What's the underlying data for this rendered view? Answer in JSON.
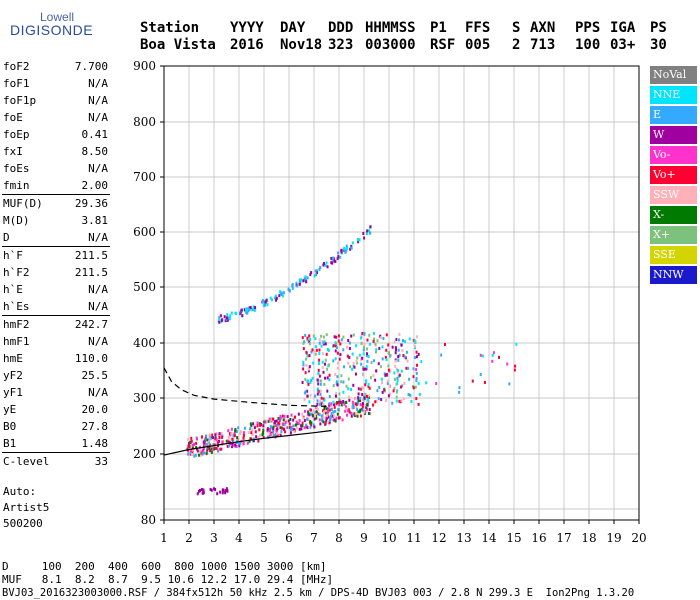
{
  "logo": {
    "line1": "Lowell",
    "line2": "DIGISONDE"
  },
  "header": {
    "row1": [
      "Station",
      "YYYY",
      "DAY",
      "DDD",
      "HHMMSS",
      "P1",
      "FFS",
      "S",
      "AXN",
      "PPS",
      "IGA",
      "PS"
    ],
    "row2": [
      "Boa Vista",
      "2016",
      "Nov18",
      "323",
      "003000",
      "RSF",
      "005",
      "2",
      "713",
      "100",
      "03+",
      "30"
    ]
  },
  "params": [
    [
      [
        "foF2",
        "7.700"
      ],
      [
        "foF1",
        "N/A"
      ],
      [
        "foF1p",
        "N/A"
      ],
      [
        "foE",
        "N/A"
      ],
      [
        "foEp",
        "0.41"
      ],
      [
        "fxI",
        "8.50"
      ],
      [
        "foEs",
        "N/A"
      ],
      [
        "fmin",
        "2.00"
      ]
    ],
    [
      [
        "MUF(D)",
        "29.36"
      ],
      [
        "M(D)",
        "3.81"
      ],
      [
        "D",
        "N/A"
      ]
    ],
    [
      [
        "h`F",
        "211.5"
      ],
      [
        "h`F2",
        "211.5"
      ],
      [
        "h`E",
        "N/A"
      ],
      [
        "h`Es",
        "N/A"
      ]
    ],
    [
      [
        "hmF2",
        "242.7"
      ],
      [
        "hmF1",
        "N/A"
      ],
      [
        "hmE",
        "110.0"
      ],
      [
        "yF2",
        "25.5"
      ],
      [
        "yF1",
        "N/A"
      ],
      [
        "yE",
        "20.0"
      ],
      [
        "B0",
        "27.8"
      ],
      [
        "B1",
        "1.48"
      ]
    ],
    [
      [
        "C-level",
        "33"
      ]
    ]
  ],
  "auto": {
    "line1": "Auto:",
    "line2": "Artist5",
    "line3": "500200"
  },
  "legend": [
    {
      "label": "NoVal",
      "color": "#808080"
    },
    {
      "label": "NNE",
      "color": "#00e5ff"
    },
    {
      "label": "E",
      "color": "#33a9ff"
    },
    {
      "label": "W",
      "color": "#a000a0"
    },
    {
      "label": "Vo-",
      "color": "#ff33cc"
    },
    {
      "label": "Vo+",
      "color": "#ff0033"
    },
    {
      "label": "SSW",
      "color": "#ffb0b8"
    },
    {
      "label": "X-",
      "color": "#007a00"
    },
    {
      "label": "X+",
      "color": "#7cc27c"
    },
    {
      "label": "SSE",
      "color": "#d4d400"
    },
    {
      "label": "NNW",
      "color": "#1a1acc"
    }
  ],
  "footer": {
    "line1": "D     100  200  400  600  800 1000 1500 3000 [km]",
    "line2": "MUF   8.1  8.2  8.7  9.5 10.6 12.2 17.0 29.4 [MHz]",
    "line3": "BVJ03_2016323003000.RSF / 384fx512h 50 kHz 2.5 km / DPS-4D BVJ03 003 / 2.8 N 299.3 E  Ion2Png 1.3.20"
  },
  "chart_data": {
    "type": "scatter",
    "x_ticks": [
      1,
      2,
      3,
      4,
      5,
      6,
      7,
      8,
      9,
      10,
      11,
      12,
      13,
      14,
      15,
      16,
      17,
      18,
      19,
      20
    ],
    "y_ticks": [
      80,
      200,
      300,
      400,
      500,
      600,
      700,
      800,
      900
    ],
    "xlim": [
      1,
      20
    ],
    "ylim": [
      80,
      900
    ],
    "y_axis_note": "virtual height (km), nonlinear scale",
    "grid": true,
    "legend_position": "right",
    "clusters": [
      {
        "name": "F2 trace (main)",
        "x_range": [
          1.9,
          9.2
        ],
        "y_range": [
          200,
          300
        ],
        "colors": [
          "Vo-",
          "Vo+",
          "W",
          "SSW",
          "X-",
          "E"
        ]
      },
      {
        "name": "spread F",
        "x_range": [
          6.5,
          11.2
        ],
        "y_range": [
          290,
          420
        ],
        "colors": [
          "SSW",
          "Vo+",
          "E",
          "NNE",
          "W",
          "X+"
        ]
      },
      {
        "name": "multi-hop trace",
        "x_range": [
          3.0,
          9.3
        ],
        "y_range": [
          440,
          615
        ],
        "colors": [
          "NNE",
          "E",
          "W"
        ]
      },
      {
        "name": "low echoes",
        "x_range": [
          2.3,
          3.5
        ],
        "y_range": [
          130,
          140
        ],
        "colors": [
          "W"
        ]
      },
      {
        "name": "scattered high",
        "x_range": [
          11.0,
          15.8
        ],
        "y_range": [
          310,
          410
        ],
        "colors": [
          "Vo+",
          "E",
          "Vo-",
          "NNE"
        ]
      }
    ],
    "profile_curves": [
      {
        "name": "true height profile",
        "style": "solid",
        "points": [
          [
            1.0,
            198
          ],
          [
            2.0,
            208
          ],
          [
            3.0,
            215
          ],
          [
            4.0,
            222
          ],
          [
            5.0,
            228
          ],
          [
            6.0,
            233
          ],
          [
            7.0,
            238
          ],
          [
            7.7,
            242
          ]
        ]
      },
      {
        "name": "dashed profile",
        "style": "dashed",
        "points": [
          [
            1.0,
            355
          ],
          [
            1.3,
            330
          ],
          [
            1.7,
            315
          ],
          [
            2.2,
            305
          ],
          [
            3.0,
            298
          ],
          [
            4.5,
            292
          ],
          [
            6.0,
            287
          ],
          [
            7.5,
            285
          ]
        ]
      }
    ]
  }
}
